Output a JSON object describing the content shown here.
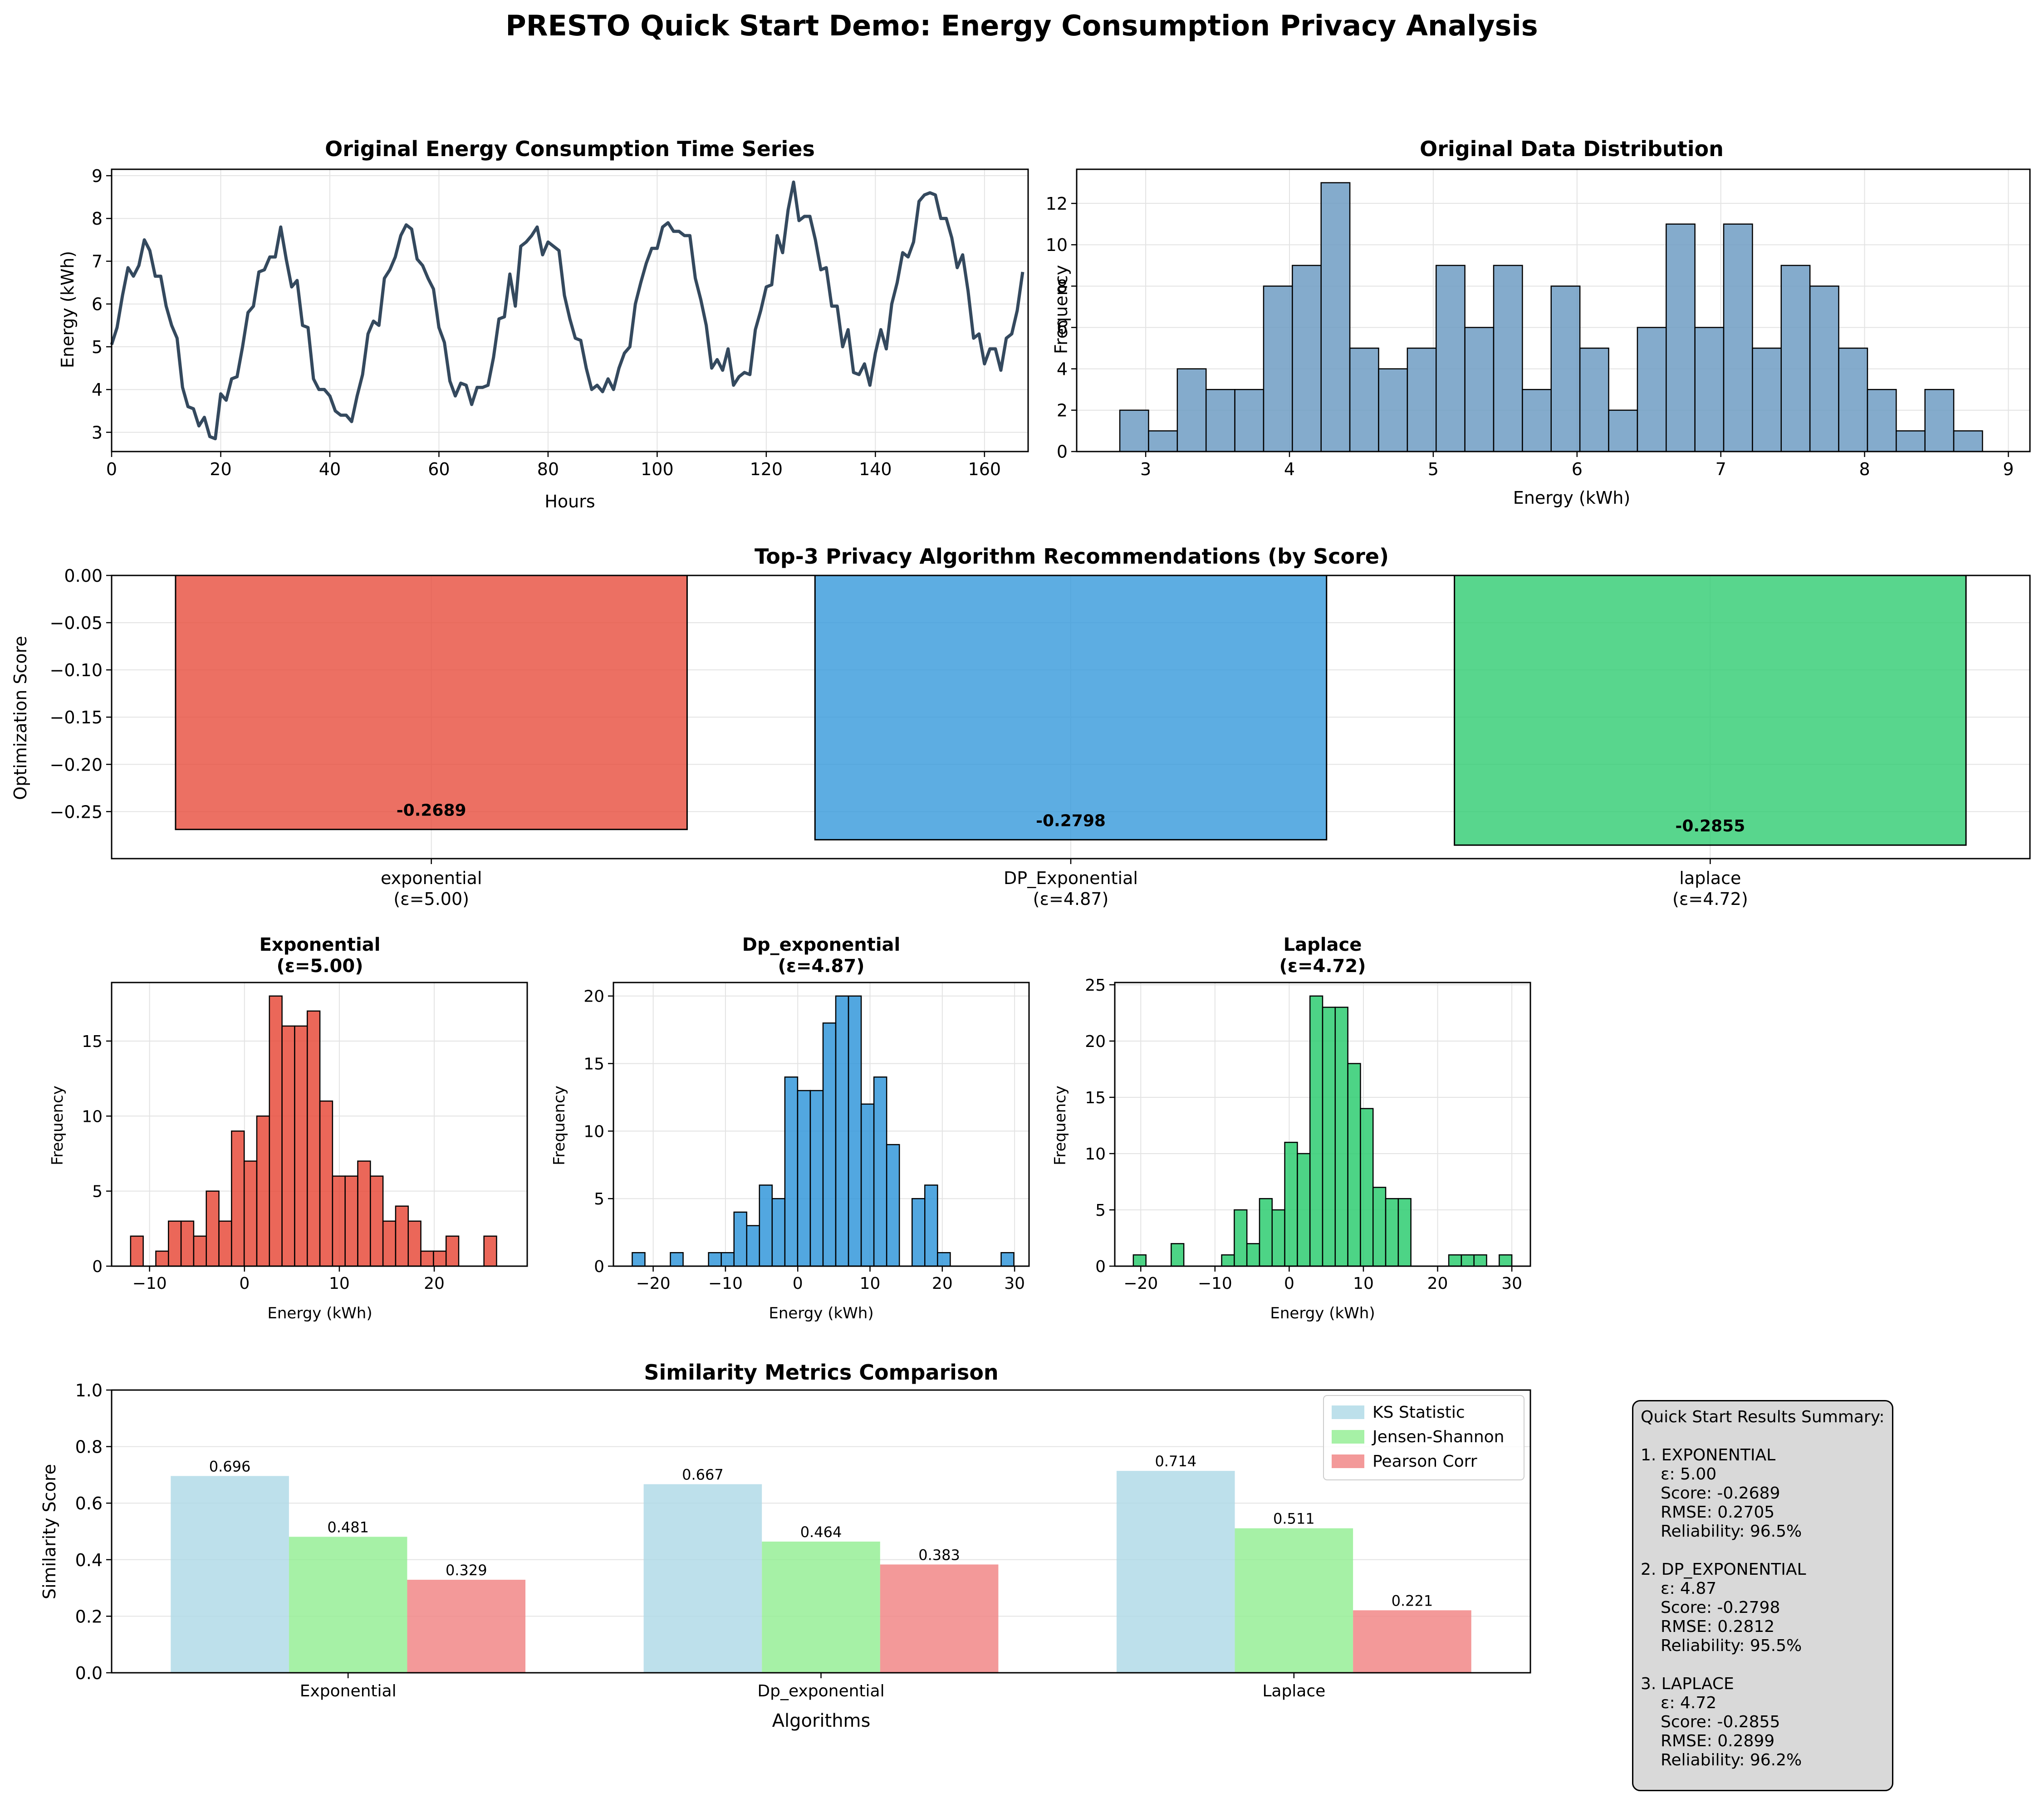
{
  "figure_title": "PRESTO Quick Start Demo: Energy Consumption Privacy Analysis",
  "colors": {
    "line": "#34495e",
    "hist_original": "#6f9cc3",
    "exponential": "#e74c3c",
    "dp_exponential": "#3498db",
    "laplace": "#2ecc71",
    "ks": "#add8e6",
    "js": "#90ee90",
    "pearson": "#f08080",
    "grid": "#e3e3e3",
    "summary_bg": "#d9d9d9"
  },
  "chart_data": [
    {
      "id": "timeseries",
      "type": "line",
      "title": "Original Energy Consumption Time Series",
      "xlabel": "Hours",
      "ylabel": "Energy (kWh)",
      "xlim": [
        0,
        168
      ],
      "ylim": [
        2.55,
        9.15
      ],
      "xticks": [
        0,
        20,
        40,
        60,
        80,
        100,
        120,
        140,
        160
      ],
      "yticks": [
        3,
        4,
        5,
        6,
        7,
        8,
        9
      ],
      "grid": true,
      "x": [
        0,
        1,
        2,
        3,
        4,
        5,
        6,
        7,
        8,
        9,
        10,
        11,
        12,
        13,
        14,
        15,
        16,
        17,
        18,
        19,
        20,
        21,
        22,
        23,
        24,
        25,
        26,
        27,
        28,
        29,
        30,
        31,
        32,
        33,
        34,
        35,
        36,
        37,
        38,
        39,
        40,
        41,
        42,
        43,
        44,
        45,
        46,
        47,
        48,
        49,
        50,
        51,
        52,
        53,
        54,
        55,
        56,
        57,
        58,
        59,
        60,
        61,
        62,
        63,
        64,
        65,
        66,
        67,
        68,
        69,
        70,
        71,
        72,
        73,
        74,
        75,
        76,
        77,
        78,
        79,
        80,
        81,
        82,
        83,
        84,
        85,
        86,
        87,
        88,
        89,
        90,
        91,
        92,
        93,
        94,
        95,
        96,
        97,
        98,
        99,
        100,
        101,
        102,
        103,
        104,
        105,
        106,
        107,
        108,
        109,
        110,
        111,
        112,
        113,
        114,
        115,
        116,
        117,
        118,
        119,
        120,
        121,
        122,
        123,
        124,
        125,
        126,
        127,
        128,
        129,
        130,
        131,
        132,
        133,
        134,
        135,
        136,
        137,
        138,
        139,
        140,
        141,
        142,
        143,
        144,
        145,
        146,
        147,
        148,
        149,
        150,
        151,
        152,
        153,
        154,
        155,
        156,
        157,
        158,
        159,
        160,
        161,
        162,
        163,
        164,
        165,
        166,
        167
      ],
      "y": [
        5.05,
        5.45,
        6.2,
        6.85,
        6.65,
        6.9,
        7.5,
        7.25,
        6.65,
        6.65,
        5.95,
        5.5,
        5.2,
        4.05,
        3.6,
        3.55,
        3.15,
        3.35,
        2.9,
        2.85,
        3.9,
        3.75,
        4.25,
        4.3,
        5.0,
        5.8,
        5.95,
        6.75,
        6.8,
        7.1,
        7.1,
        7.8,
        7.05,
        6.4,
        6.55,
        5.5,
        5.45,
        4.25,
        4.0,
        4.0,
        3.85,
        3.5,
        3.4,
        3.4,
        3.25,
        3.85,
        4.35,
        5.3,
        5.6,
        5.5,
        6.6,
        6.8,
        7.1,
        7.6,
        7.85,
        7.75,
        7.05,
        6.9,
        6.6,
        6.35,
        5.45,
        5.1,
        4.2,
        3.85,
        4.15,
        4.1,
        3.65,
        4.05,
        4.05,
        4.1,
        4.75,
        5.65,
        5.7,
        6.7,
        5.95,
        7.35,
        7.45,
        7.6,
        7.8,
        7.15,
        7.45,
        7.35,
        7.25,
        6.2,
        5.65,
        5.2,
        5.15,
        4.5,
        4.0,
        4.1,
        3.95,
        4.25,
        4.0,
        4.5,
        4.85,
        5.0,
        6.0,
        6.5,
        6.95,
        7.3,
        7.3,
        7.8,
        7.9,
        7.7,
        7.7,
        7.6,
        7.6,
        6.6,
        6.1,
        5.5,
        4.5,
        4.7,
        4.45,
        4.95,
        4.1,
        4.3,
        4.4,
        4.35,
        5.4,
        5.85,
        6.4,
        6.45,
        7.6,
        7.2,
        8.2,
        8.85,
        7.95,
        8.05,
        8.05,
        7.5,
        6.8,
        6.85,
        5.95,
        5.95,
        5.0,
        5.4,
        4.4,
        4.35,
        4.6,
        4.1,
        4.85,
        5.4,
        4.95,
        6.0,
        6.5,
        7.2,
        7.1,
        7.45,
        8.4,
        8.55,
        8.6,
        8.55,
        8.0,
        8.0,
        7.55,
        6.85,
        7.15,
        6.3,
        5.2,
        5.3,
        4.6,
        4.95,
        4.95,
        4.45,
        5.2,
        5.3,
        5.85,
        6.75
      ]
    },
    {
      "id": "original_hist",
      "type": "bar",
      "title": "Original Data Distribution",
      "xlabel": "Energy (kWh)",
      "ylabel": "Frequency",
      "bin_start": 2.82,
      "bin_width": 0.2,
      "counts": [
        2,
        1,
        4,
        3,
        3,
        8,
        9,
        13,
        5,
        4,
        5,
        9,
        6,
        9,
        3,
        8,
        5,
        2,
        6,
        11,
        6,
        11,
        5,
        9,
        8,
        5,
        3,
        1,
        3,
        1
      ],
      "xlim": [
        2.52,
        9.15
      ],
      "ylim": [
        0,
        13.65
      ],
      "xticks": [
        3,
        4,
        5,
        6,
        7,
        8,
        9
      ],
      "yticks": [
        0,
        2,
        4,
        6,
        8,
        10,
        12
      ],
      "grid": true
    },
    {
      "id": "recommendations",
      "type": "bar",
      "title": "Top-3 Privacy Algorithm Recommendations (by Score)",
      "ylabel": "Optimization Score",
      "categories": [
        "exponential",
        "DP_Exponential",
        "laplace"
      ],
      "epsilons": [
        "(ε=5.00)",
        "(ε=4.87)",
        "(ε=4.72)"
      ],
      "values": [
        -0.2689,
        -0.2798,
        -0.2855
      ],
      "labels": [
        "-0.2689",
        "-0.2798",
        "-0.2855"
      ],
      "ylim": [
        -0.2998,
        0.0
      ],
      "yticks": [
        0.0,
        -0.05,
        -0.1,
        -0.15,
        -0.2,
        -0.25
      ],
      "ytick_labels": [
        "0.00",
        "−0.05",
        "−0.10",
        "−0.15",
        "−0.20",
        "−0.25"
      ],
      "grid": true
    },
    {
      "id": "hist_exponential",
      "type": "bar",
      "title": "Exponential",
      "subtitle": "(ε=5.00)",
      "xlabel": "Energy (kWh)",
      "ylabel": "Frequency",
      "bin_start": -12.0,
      "bin_width": 1.33,
      "counts": [
        2,
        0,
        1,
        3,
        3,
        2,
        5,
        3,
        9,
        7,
        10,
        18,
        16,
        16,
        17,
        11,
        6,
        6,
        7,
        6,
        3,
        4,
        3,
        1,
        1,
        2,
        0,
        0,
        2
      ],
      "xlim": [
        -14.0,
        29.8
      ],
      "ylim": [
        0,
        18.9
      ],
      "xticks": [
        -10,
        0,
        10,
        20
      ],
      "xtick_labels": [
        "−10",
        "0",
        "10",
        "20"
      ],
      "yticks": [
        0,
        5,
        10,
        15
      ],
      "grid": true
    },
    {
      "id": "hist_dp_exponential",
      "type": "bar",
      "title": "Dp_exponential",
      "subtitle": "(ε=4.87)",
      "xlabel": "Energy (kWh)",
      "ylabel": "Frequency",
      "bin_start": -22.9,
      "bin_width": 1.76,
      "counts": [
        1,
        0,
        0,
        1,
        0,
        0,
        1,
        1,
        4,
        3,
        6,
        5,
        14,
        13,
        13,
        18,
        20,
        20,
        12,
        14,
        9,
        0,
        5,
        6,
        1,
        0,
        0,
        0,
        0,
        1
      ],
      "xlim": [
        -25.5,
        32.0
      ],
      "ylim": [
        0,
        21.0
      ],
      "xticks": [
        -20,
        -10,
        0,
        10,
        20,
        30
      ],
      "xtick_labels": [
        "−20",
        "−10",
        "0",
        "10",
        "20",
        "30"
      ],
      "yticks": [
        0,
        5,
        10,
        15,
        20
      ],
      "grid": true
    },
    {
      "id": "hist_laplace",
      "type": "bar",
      "title": "Laplace",
      "subtitle": "(ε=4.72)",
      "xlabel": "Energy (kWh)",
      "ylabel": "Frequency",
      "bin_start": -21.0,
      "bin_width": 1.7,
      "counts": [
        1,
        0,
        0,
        2,
        0,
        0,
        0,
        1,
        5,
        2,
        6,
        5,
        11,
        10,
        24,
        23,
        23,
        18,
        14,
        7,
        6,
        6,
        0,
        0,
        0,
        1,
        1,
        1,
        0,
        1
      ],
      "xlim": [
        -23.5,
        32.5
      ],
      "ylim": [
        0,
        25.2
      ],
      "xticks": [
        -20,
        -10,
        0,
        10,
        20,
        30
      ],
      "xtick_labels": [
        "−20",
        "−10",
        "0",
        "10",
        "20",
        "30"
      ],
      "yticks": [
        0,
        5,
        10,
        15,
        20,
        25
      ],
      "grid": true
    },
    {
      "id": "similarity",
      "type": "bar",
      "title": "Similarity Metrics Comparison",
      "xlabel": "Algorithms",
      "ylabel": "Similarity Score",
      "categories": [
        "Exponential",
        "Dp_exponential",
        "Laplace"
      ],
      "series": [
        {
          "name": "KS Statistic",
          "values": [
            0.696,
            0.667,
            0.714
          ]
        },
        {
          "name": "Jensen-Shannon",
          "values": [
            0.481,
            0.464,
            0.511
          ]
        },
        {
          "name": "Pearson Corr",
          "values": [
            0.329,
            0.383,
            0.221
          ]
        }
      ],
      "value_labels": [
        [
          "0.696",
          "0.667",
          "0.714"
        ],
        [
          "0.481",
          "0.464",
          "0.511"
        ],
        [
          "0.329",
          "0.383",
          "0.221"
        ]
      ],
      "ylim": [
        0,
        1.0
      ],
      "yticks": [
        0.0,
        0.2,
        0.4,
        0.6,
        0.8,
        1.0
      ],
      "ytick_labels": [
        "0.0",
        "0.2",
        "0.4",
        "0.6",
        "0.8",
        "1.0"
      ],
      "legend": "top-right",
      "grid": true
    }
  ],
  "summary": {
    "title": "Quick Start Results Summary:",
    "items": [
      {
        "heading": "1. EXPONENTIAL",
        "eps": "ε: 5.00",
        "score": "Score: -0.2689",
        "rmse": "RMSE: 0.2705",
        "reliability": "Reliability: 96.5%"
      },
      {
        "heading": "2. DP_EXPONENTIAL",
        "eps": "ε: 4.87",
        "score": "Score: -0.2798",
        "rmse": "RMSE: 0.2812",
        "reliability": "Reliability: 95.5%"
      },
      {
        "heading": "3. LAPLACE",
        "eps": "ε: 4.72",
        "score": "Score: -0.2855",
        "rmse": "RMSE: 0.2899",
        "reliability": "Reliability: 96.2%"
      }
    ]
  }
}
